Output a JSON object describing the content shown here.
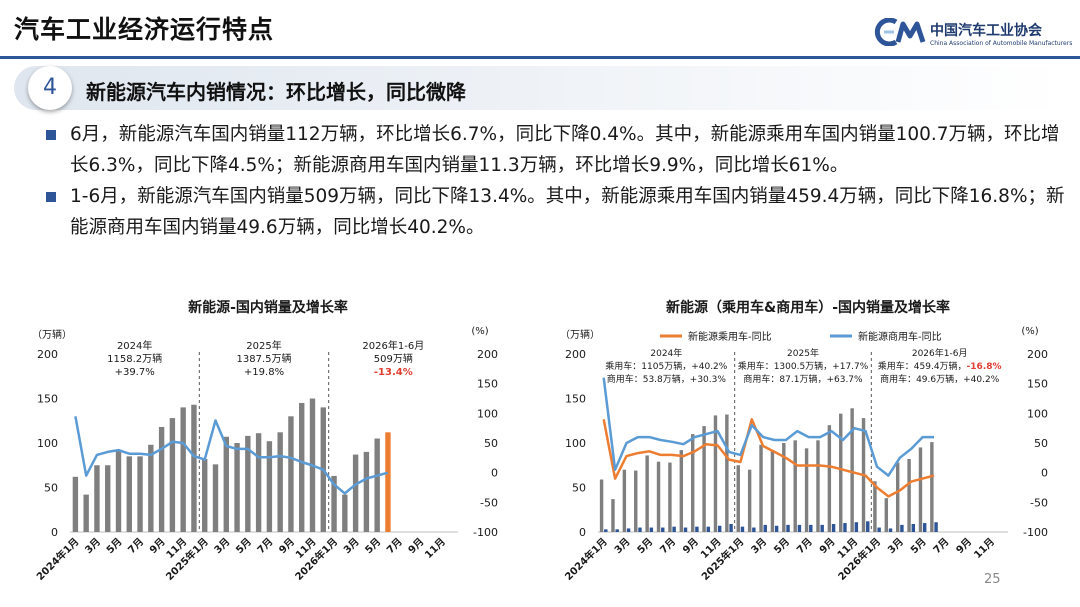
{
  "header": {
    "title": "汽车工业经济运行特点",
    "logo_cn": "中国汽车工业协会",
    "logo_en": "China Association of Automobile Manufacturers",
    "brand_color": "#2e5597"
  },
  "section": {
    "number": "4",
    "title": "新能源汽车内销情况：环比增长，同比微降"
  },
  "bullets": [
    "6月，新能源汽车国内销量112万辆，环比增长6.7%，同比下降0.4%。其中，新能源乘用车国内销量100.7万辆，环比增长6.3%，同比下降4.5%；新能源商用车国内销量11.3万辆，环比增长9.9%，同比增长61%。",
    "1-6月，新能源汽车国内销量509万辆，同比下降13.4%。其中，新能源乘用车国内销量459.4万辆，同比下降16.8%；新能源商用车国内销量49.6万辆，同比增长40.2%。"
  ],
  "page_number": "25",
  "chart_data": [
    {
      "type": "bar",
      "title": "新能源-国内销量及增长率",
      "ylabel_left": "（万辆）",
      "ylabel_right": "(%)",
      "ylim_left": [
        0,
        200
      ],
      "yticks_left": [
        "0",
        "50",
        "100",
        "150",
        "200"
      ],
      "ylim_right": [
        -100,
        200
      ],
      "yticks_right": [
        "-100",
        "-50",
        "0",
        "50",
        "100",
        "150",
        "200"
      ],
      "x_tick_labels": [
        "2024年1月",
        "3月",
        "5月",
        "7月",
        "9月",
        "11月",
        "2025年1月",
        "3月",
        "5月",
        "7月",
        "9月",
        "11月",
        "2026年1月",
        "3月",
        "5月",
        "7月",
        "9月",
        "11月"
      ],
      "series": [
        {
          "kind": "bar",
          "color": "#7f7f7f",
          "values": [
            62,
            42,
            75,
            75,
            92,
            85,
            85,
            98,
            118,
            128,
            140,
            143,
            82,
            76,
            107,
            100,
            108,
            111,
            102,
            112,
            130,
            145,
            150,
            140,
            63,
            42,
            87,
            90,
            105,
            112,
            null,
            null,
            null,
            null,
            null,
            null
          ]
        },
        {
          "kind": "bar-highlight",
          "color": "#ed7d31",
          "index": 29,
          "value": 112
        },
        {
          "kind": "line",
          "color": "#5b9bd5",
          "values": [
            95,
            -5,
            30,
            35,
            38,
            32,
            32,
            30,
            40,
            52,
            50,
            28,
            22,
            88,
            45,
            40,
            40,
            26,
            26,
            28,
            25,
            18,
            12,
            5,
            -20,
            -35,
            -20,
            -10,
            -5,
            0,
            null,
            null,
            null,
            null,
            null,
            null
          ]
        }
      ],
      "annotations": [
        {
          "label": "2024年",
          "value": "1158.2万辆",
          "growth": "+39.7%",
          "growth_color": "#1a1a1a"
        },
        {
          "label": "2025年",
          "value": "1387.5万辆",
          "growth": "+19.8%",
          "growth_color": "#1a1a1a"
        },
        {
          "label": "2026年1-6月",
          "value": "509万辆",
          "growth": "-13.4%",
          "growth_color": "#e03c31"
        }
      ]
    },
    {
      "type": "bar",
      "title": "新能源（乘用车&商用车）-国内销量及增长率",
      "ylabel_left": "（万辆）",
      "ylabel_right": "(%)",
      "ylim_left": [
        0,
        200
      ],
      "yticks_left": [
        "0",
        "50",
        "100",
        "150",
        "200"
      ],
      "ylim_right": [
        -100,
        200
      ],
      "yticks_right": [
        "-100",
        "-50",
        "0",
        "50",
        "100",
        "150",
        "200"
      ],
      "x_tick_labels": [
        "2024年1月",
        "3月",
        "5月",
        "7月",
        "9月",
        "11月",
        "2025年1月",
        "3月",
        "5月",
        "7月",
        "9月",
        "11月",
        "2026年1月",
        "3月",
        "5月",
        "7月",
        "9月",
        "11月"
      ],
      "legend": [
        {
          "name": "新能源乘用车-同比",
          "color": "#ed7d31"
        },
        {
          "name": "新能源商用车-同比",
          "color": "#5b9bd5"
        }
      ],
      "series": [
        {
          "kind": "bar",
          "color": "#7f7f7f",
          "values": [
            59,
            37,
            70,
            69,
            86,
            79,
            78,
            92,
            110,
            119,
            131,
            132,
            75,
            70,
            98,
            92,
            100,
            103,
            94,
            103,
            120,
            133,
            139,
            128,
            57,
            38,
            78,
            82,
            95,
            101,
            null,
            null,
            null,
            null,
            null,
            null
          ]
        },
        {
          "kind": "bar",
          "color": "#2e5597",
          "values": [
            3,
            3,
            4,
            5,
            5,
            5,
            6,
            5,
            6,
            6,
            7,
            9,
            6,
            5,
            8,
            7,
            8,
            8,
            8,
            8,
            9,
            10,
            11,
            12,
            5,
            4,
            8,
            9,
            10,
            11,
            null,
            null,
            null,
            null,
            null,
            null
          ]
        },
        {
          "kind": "line",
          "color": "#ed7d31",
          "values": [
            90,
            -10,
            28,
            33,
            36,
            30,
            30,
            28,
            36,
            48,
            46,
            22,
            18,
            90,
            45,
            35,
            25,
            12,
            12,
            12,
            10,
            5,
            0,
            -5,
            -25,
            -40,
            -30,
            -15,
            -10,
            -5,
            null,
            null,
            null,
            null,
            null,
            null
          ]
        },
        {
          "kind": "line",
          "color": "#5b9bd5",
          "values": [
            160,
            5,
            50,
            60,
            60,
            55,
            52,
            48,
            60,
            65,
            70,
            35,
            30,
            80,
            60,
            55,
            55,
            70,
            60,
            60,
            70,
            55,
            75,
            70,
            10,
            -5,
            25,
            40,
            60,
            60,
            null,
            null,
            null,
            null,
            null,
            null
          ]
        }
      ],
      "annotations": [
        {
          "label": "2024年",
          "passenger": "乘用车：1105万辆，+40.2%",
          "commercial": "商用车：53.8万辆，+30.3%"
        },
        {
          "label": "2025年",
          "passenger": "乘用车：1300.5万辆，+17.7%",
          "commercial": "商用车：87.1万辆，+63.7%"
        },
        {
          "label": "2026年1-6月",
          "passenger_prefix": "乘用车：459.4万辆，",
          "passenger_growth": "-16.8%",
          "passenger_growth_color": "#e03c31",
          "commercial": "商用车：49.6万辆，+40.2%"
        }
      ]
    }
  ]
}
